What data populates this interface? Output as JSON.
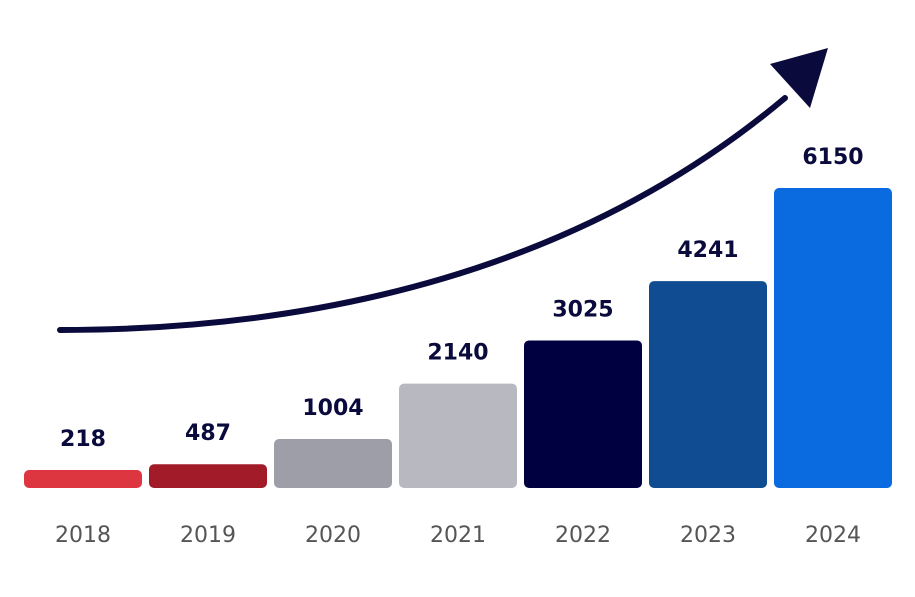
{
  "chart_data": {
    "type": "bar",
    "title": "",
    "xlabel": "",
    "ylabel": "",
    "categories": [
      "2018",
      "2019",
      "2020",
      "2021",
      "2022",
      "2023",
      "2024"
    ],
    "values": [
      218,
      487,
      1004,
      2140,
      3025,
      4241,
      6150
    ],
    "value_labels": [
      "218",
      "487",
      "1004",
      "2140",
      "3025",
      "4241",
      "6150"
    ],
    "bar_colors": [
      "#de3641",
      "#a11c28",
      "#9d9ea7",
      "#b8b8c0",
      "#000040",
      "#0f4c92",
      "#0a6be0"
    ],
    "trend_arrow": true,
    "arrow_color": "#0a0a3c",
    "grid": false,
    "legend": "none",
    "axis_lines": false
  }
}
